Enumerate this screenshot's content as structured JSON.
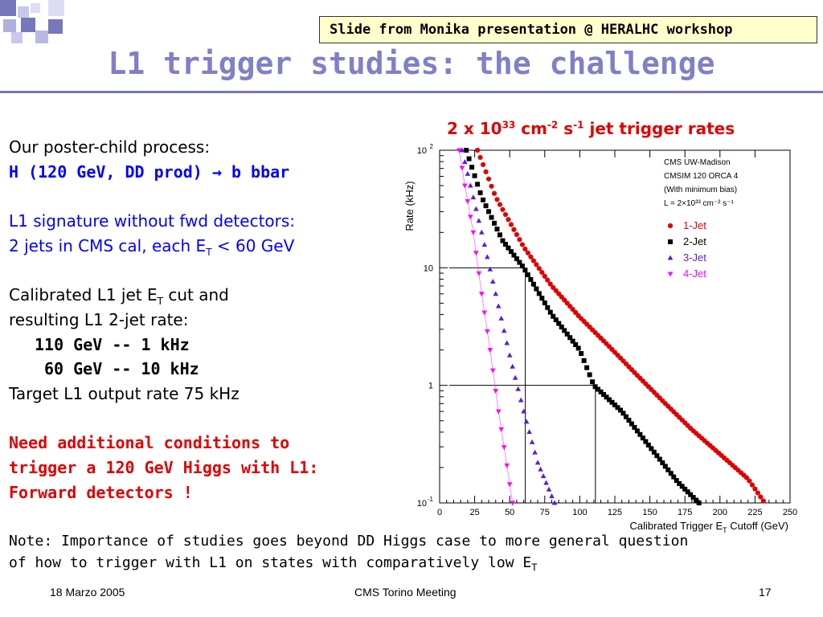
{
  "header": {
    "banner": "Slide from Monika presentation @ HERALHC workshop",
    "title": "L1 trigger studies: the challenge",
    "accent_color": "#7777bb",
    "banner_bg": "#ffffcc"
  },
  "left": {
    "line1": "Our poster-child process:",
    "line2": "H (120 GeV, DD prod) → b bbar",
    "line3": "L1 signature without fwd detectors:",
    "line4_main": "2 jets in CMS cal, each E",
    "line4_sub": "T",
    "line4_tail": " < 60 GeV",
    "line5_main": "Calibrated L1 jet E",
    "line5_sub": "T",
    "line5_tail": " cut and",
    "line6": "resulting L1 2-jet rate:",
    "line7": "110 GeV --  1 kHz",
    "line8": "60 GeV -- 10 kHz",
    "line9": "Target L1 output rate 75 kHz",
    "line10": "Need additional conditions to",
    "line11": "trigger a 120 GeV Higgs with L1:",
    "line12": "Forward detectors !"
  },
  "chart_title": {
    "a": "2 x 10",
    "a_sup": "33",
    "b": " cm",
    "b_sup": "-2",
    "c": " s",
    "c_sup": "-1",
    "d": " jet trigger rates"
  },
  "note": {
    "line1": "Note: Importance of studies goes beyond DD Higgs case to more general question",
    "line2_main": "of how to trigger with L1 on states with comparatively low E",
    "line2_sub": "T"
  },
  "footer": {
    "date": "18 Marzo 2005",
    "meeting": "CMS Torino Meeting",
    "page": "17"
  },
  "chart_data": {
    "type": "scatter",
    "ylabel": "Rate (kHz)",
    "xlabel": "Calibrated Trigger E_T Cutoff (GeV)",
    "xlim": [
      0,
      250
    ],
    "ylim": [
      0.1,
      100
    ],
    "yscale": "log",
    "x_ticks": [
      "0",
      "25",
      "50",
      "75",
      "100",
      "125",
      "150",
      "175",
      "200",
      "225",
      "250"
    ],
    "y_tick_labels": [
      {
        "base": "10",
        "exp": "-1"
      },
      {
        "base": "1",
        "exp": ""
      },
      {
        "base": "10",
        "exp": ""
      },
      {
        "base": "10",
        "exp": "2"
      }
    ],
    "legend_info": [
      "CMS UW-Madison",
      "CMSIM 120 ORCA 4",
      "(With minimum bias)",
      "L = 2×10³³ cm⁻² s⁻¹"
    ],
    "legend_placement": "top-right",
    "series": [
      {
        "name": "1-Jet",
        "marker": "circle",
        "color": "#e00000",
        "points": [
          [
            27,
            100
          ],
          [
            40,
            40
          ],
          [
            60,
            15
          ],
          [
            80,
            7
          ],
          [
            100,
            3.8
          ],
          [
            120,
            2.2
          ],
          [
            140,
            1.25
          ],
          [
            160,
            0.72
          ],
          [
            180,
            0.42
          ],
          [
            200,
            0.26
          ],
          [
            220,
            0.16
          ],
          [
            232,
            0.1
          ]
        ]
      },
      {
        "name": "2-Jet",
        "marker": "square",
        "color": "#000000",
        "points": [
          [
            19,
            100
          ],
          [
            30,
            40
          ],
          [
            45,
            17
          ],
          [
            60,
            10
          ],
          [
            80,
            4
          ],
          [
            100,
            2
          ],
          [
            110,
            1
          ],
          [
            130,
            0.6
          ],
          [
            150,
            0.3
          ],
          [
            170,
            0.15
          ],
          [
            185,
            0.1
          ]
        ]
      },
      {
        "name": "3-Jet",
        "marker": "triangle-up",
        "color": "#5a1bd8",
        "points": [
          [
            16,
            100
          ],
          [
            22,
            50
          ],
          [
            30,
            20
          ],
          [
            40,
            6
          ],
          [
            50,
            1.8
          ],
          [
            60,
            0.6
          ],
          [
            70,
            0.22
          ],
          [
            82,
            0.1
          ]
        ]
      },
      {
        "name": "4-Jet",
        "marker": "triangle-down",
        "color": "#ff00ff",
        "points": [
          [
            14,
            100
          ],
          [
            18,
            50
          ],
          [
            24,
            20
          ],
          [
            30,
            6
          ],
          [
            36,
            2
          ],
          [
            42,
            0.6
          ],
          [
            47,
            0.25
          ],
          [
            52,
            0.1
          ]
        ]
      }
    ],
    "guides": [
      {
        "x": 60,
        "y": 10
      },
      {
        "x": 110,
        "y": 1
      }
    ]
  }
}
